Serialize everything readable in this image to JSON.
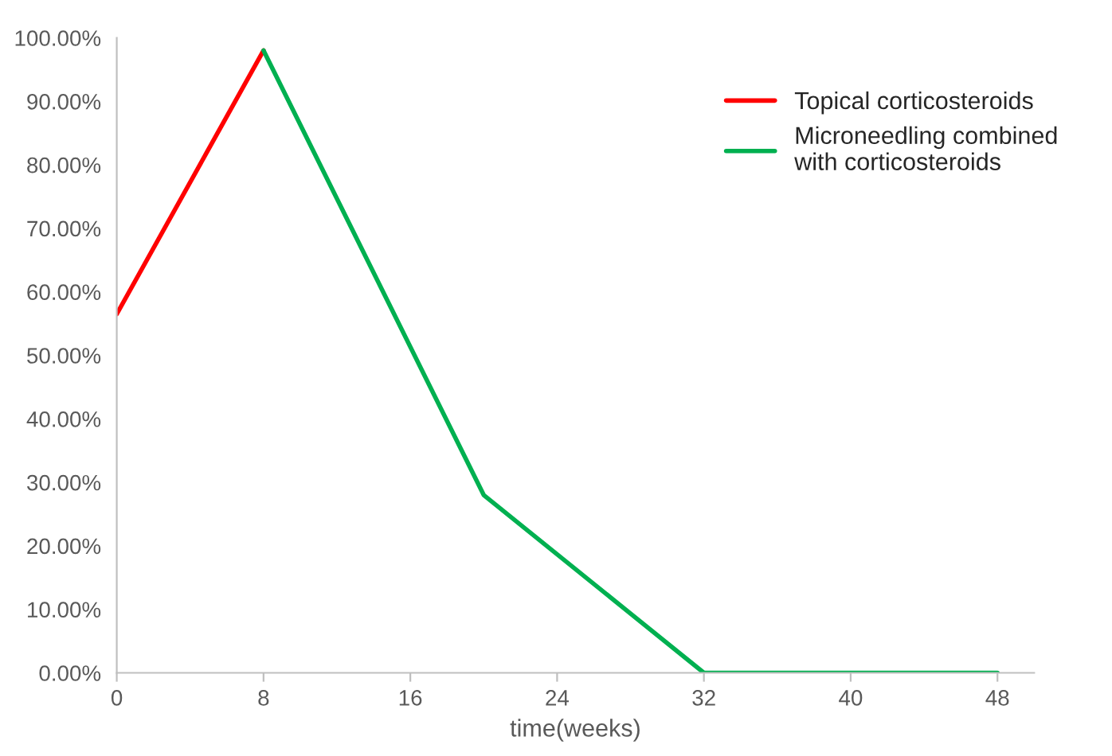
{
  "chart_data": {
    "type": "line",
    "xlabel": "time(weeks)",
    "series": [
      {
        "name": "Topical corticosteroids",
        "color": "#ff0000",
        "x": [
          0,
          8
        ],
        "values": [
          56.5,
          98
        ]
      },
      {
        "name": "Microneedling combined\nwith corticosteroids",
        "color": "#00b050",
        "x": [
          8,
          20,
          32,
          48
        ],
        "values": [
          98,
          28,
          0,
          0
        ]
      }
    ],
    "xlim": [
      0,
      50
    ],
    "xticks": [
      0,
      8,
      16,
      24,
      32,
      40,
      48
    ],
    "ylim": [
      0,
      100
    ],
    "yticks": [
      {
        "value": 0,
        "label": "0.00%"
      },
      {
        "value": 10,
        "label": "10.00%"
      },
      {
        "value": 20,
        "label": "20.00%"
      },
      {
        "value": 30,
        "label": "30.00%"
      },
      {
        "value": 40,
        "label": "40.00%"
      },
      {
        "value": 50,
        "label": "50.00%"
      },
      {
        "value": 60,
        "label": "60.00%"
      },
      {
        "value": 70,
        "label": "70.00%"
      },
      {
        "value": 80,
        "label": "80.00%"
      },
      {
        "value": 90,
        "label": "90.00%"
      },
      {
        "value": 100,
        "label": "100.00%"
      }
    ],
    "grid": false,
    "legend": "top right",
    "marker": "none",
    "line_style": "solid"
  }
}
